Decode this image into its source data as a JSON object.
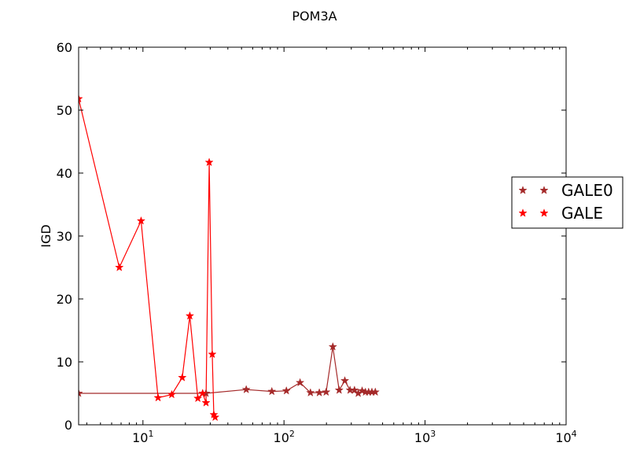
{
  "chart_data": {
    "type": "line",
    "title": "POM3A",
    "xlabel": "",
    "ylabel": "IGD",
    "xscale": "log",
    "xlim": [
      3.5,
      10000
    ],
    "ylim": [
      0,
      60
    ],
    "y_ticks": [
      0,
      10,
      20,
      30,
      40,
      50,
      60
    ],
    "x_ticks": [
      {
        "value": 10,
        "base": "10",
        "exp": "1"
      },
      {
        "value": 100,
        "base": "10",
        "exp": "2"
      },
      {
        "value": 1000,
        "base": "10",
        "exp": "3"
      },
      {
        "value": 10000,
        "base": "10",
        "exp": "4"
      }
    ],
    "legend_position": "right",
    "series": [
      {
        "name": "GALE0",
        "color": "#a52a2a",
        "marker": "star",
        "x": [
          3.5,
          28,
          54,
          82,
          104,
          130,
          154,
          178,
          199,
          222,
          246,
          270,
          294,
          316,
          336,
          358,
          378,
          398,
          420,
          444
        ],
        "y": [
          5.0,
          5.0,
          5.6,
          5.3,
          5.4,
          6.7,
          5.1,
          5.1,
          5.2,
          12.4,
          5.5,
          7.0,
          5.5,
          5.5,
          5.0,
          5.4,
          5.2,
          5.2,
          5.2,
          5.2
        ]
      },
      {
        "name": "GALE",
        "color": "#ff0000",
        "marker": "star",
        "x": [
          3.5,
          6.8,
          9.7,
          12.8,
          16,
          19,
          21.5,
          24.5,
          26.5,
          28,
          29.5,
          31,
          31.8,
          32.5
        ],
        "y": [
          51.8,
          25.0,
          32.4,
          4.3,
          4.8,
          7.5,
          17.3,
          4.2,
          5.0,
          3.5,
          41.7,
          11.2,
          1.6,
          1.2
        ]
      }
    ]
  }
}
